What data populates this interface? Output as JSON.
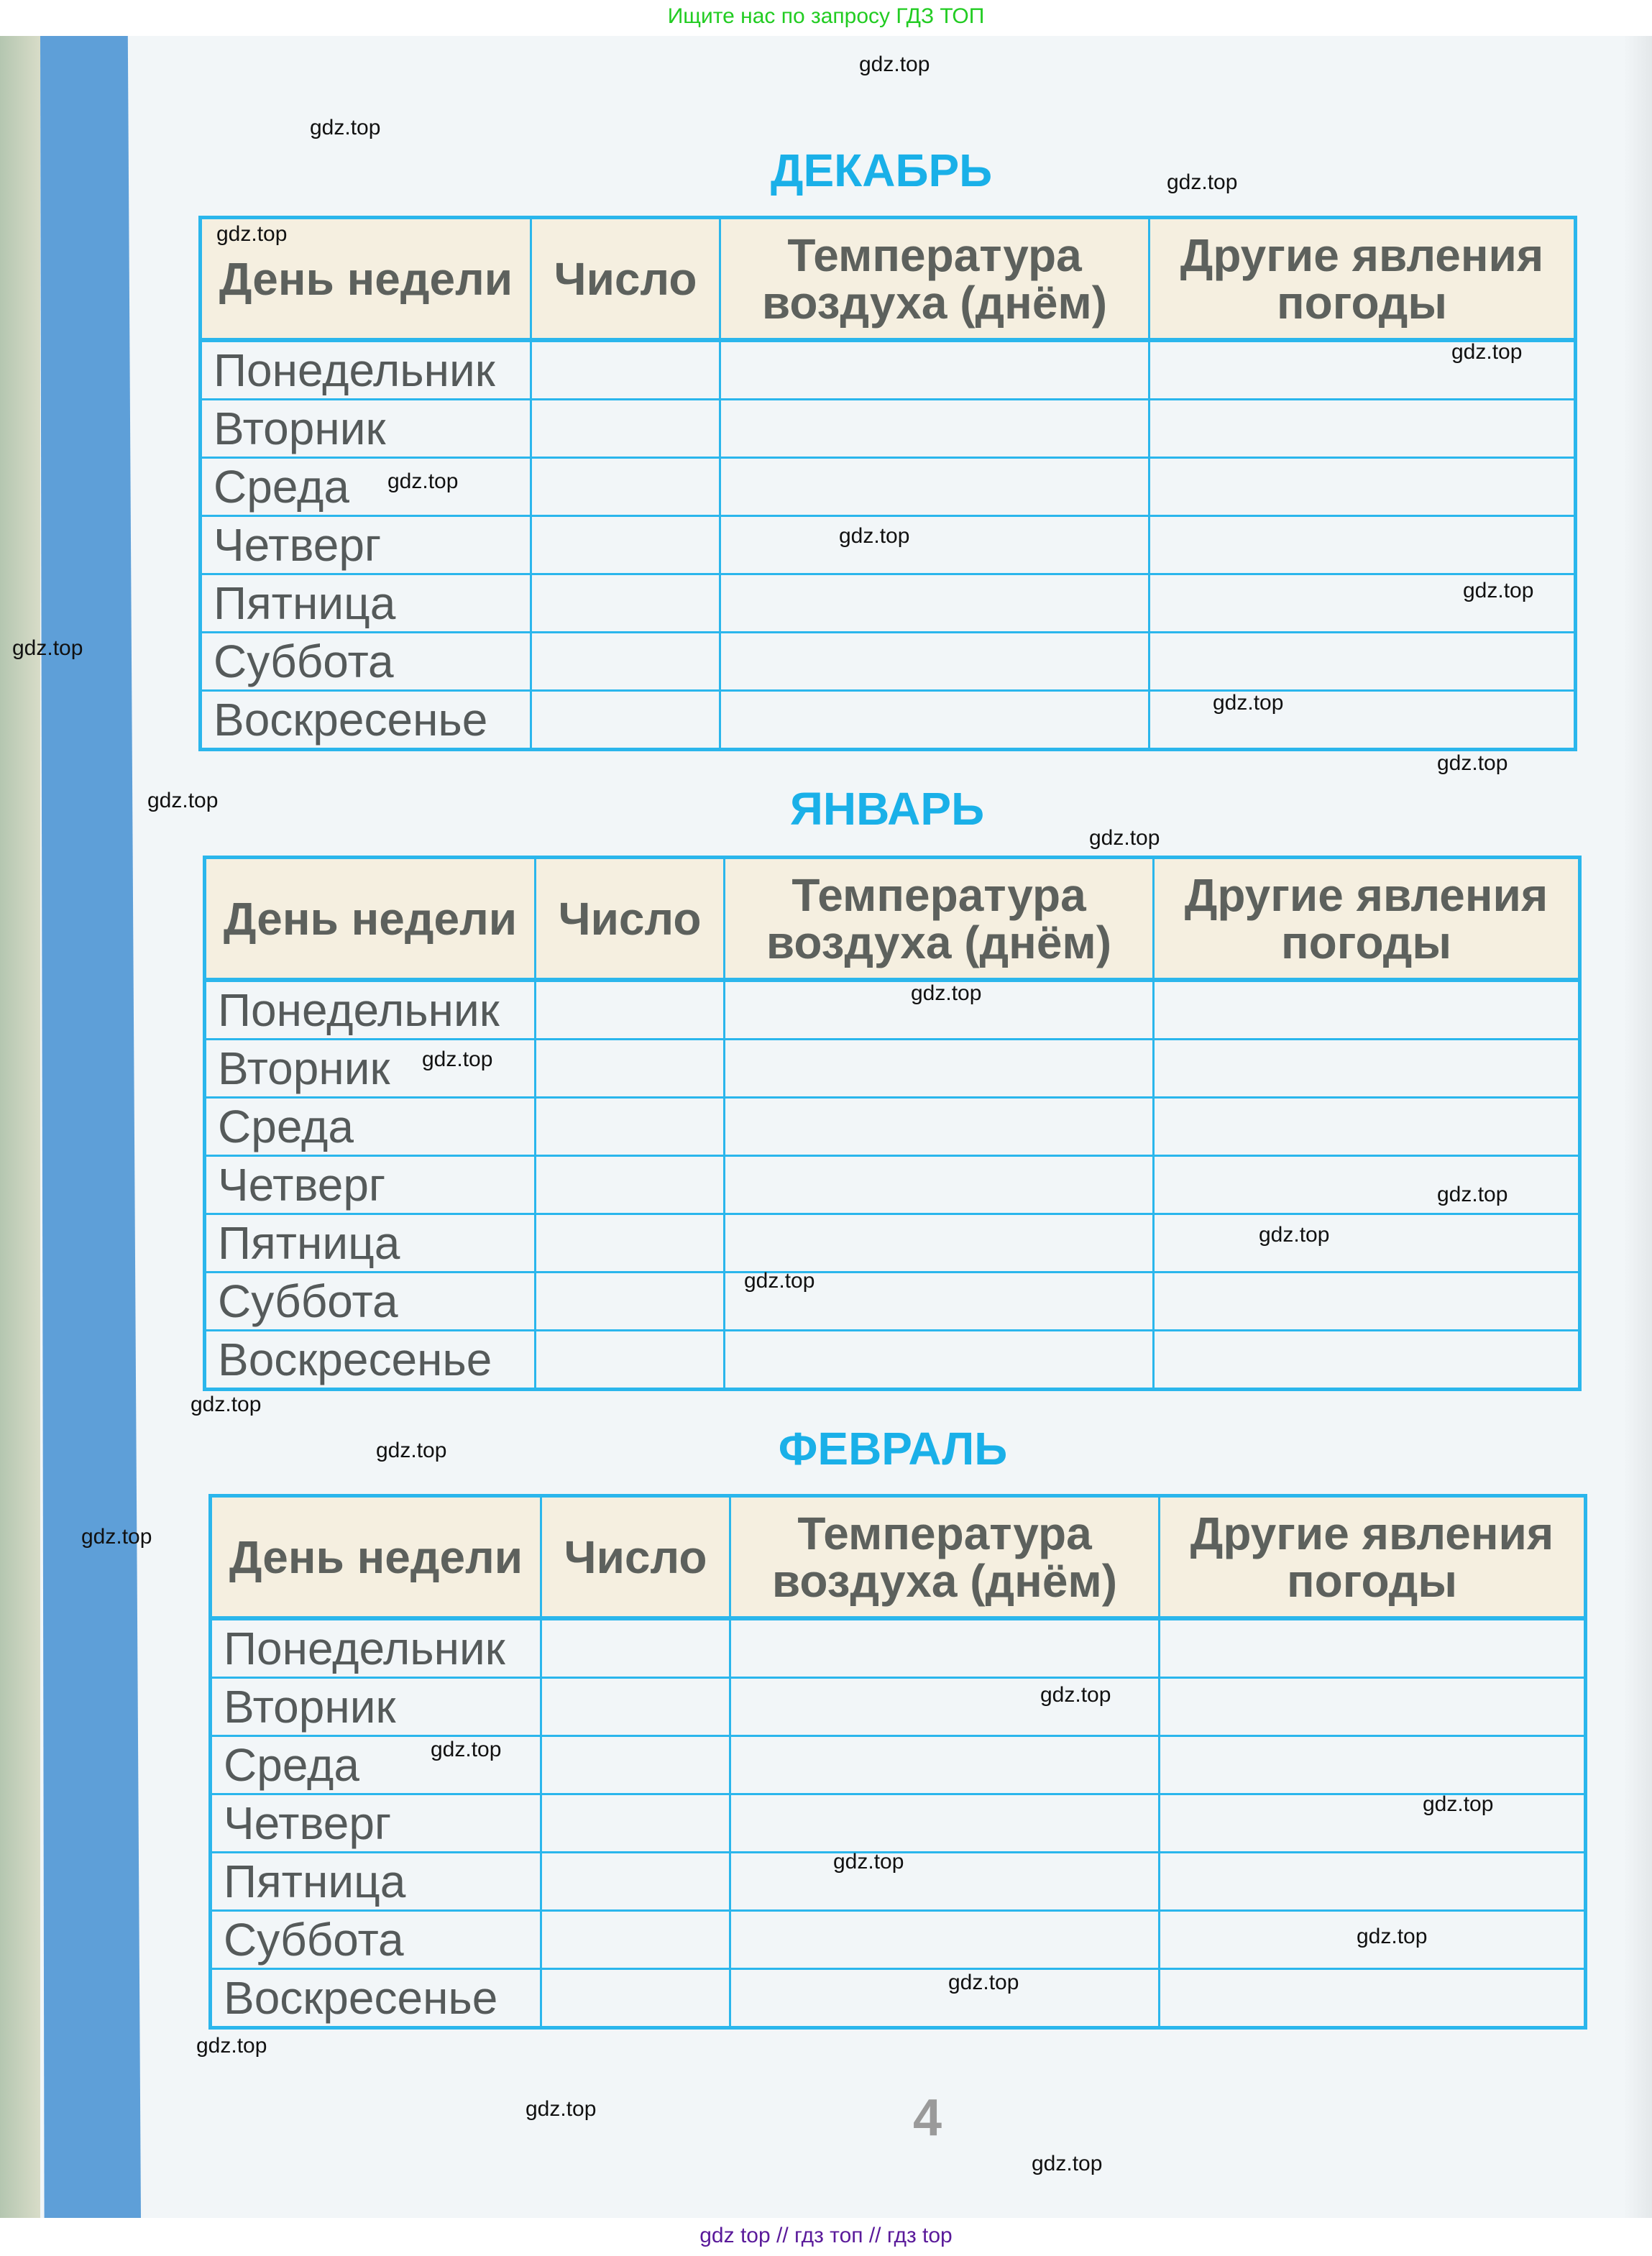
{
  "header_banner": "Ищите нас по запросу ГДЗ ТОП",
  "footer_banner": "gdz top  //  гдз топ  //  гдз top",
  "colors": {
    "accent": "#1ab0e8",
    "table_border": "#2bb6ec",
    "header_bg": "#f5efe0",
    "banner_green": "#22cc22",
    "banner_purple": "#5a1a9a"
  },
  "columns": {
    "day": "День недели",
    "number": "Число",
    "temperature": "Температура воздуха (днём)",
    "other": "Другие явления погоды"
  },
  "days": [
    "Понедельник",
    "Вторник",
    "Среда",
    "Четверг",
    "Пятница",
    "Суббота",
    "Воскресенье"
  ],
  "months": [
    "ДЕКАБРЬ",
    "ЯНВАРЬ",
    "ФЕВРАЛЬ"
  ],
  "page_number": "4",
  "watermark": "gdz.top"
}
